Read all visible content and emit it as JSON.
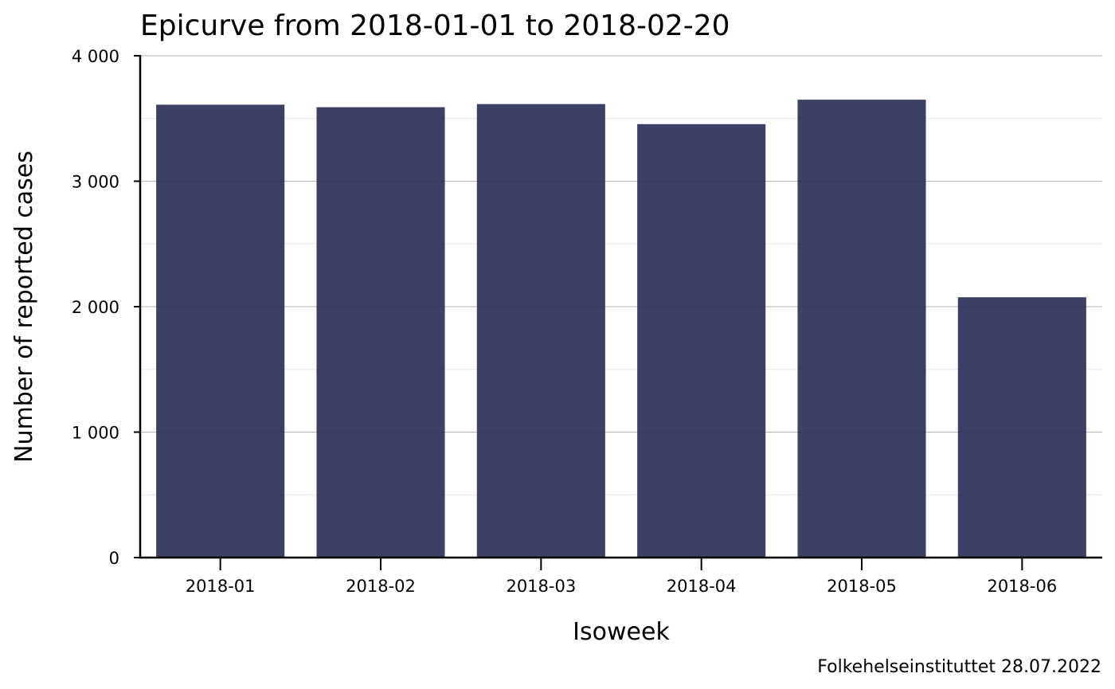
{
  "chart_data": {
    "type": "bar",
    "title": "Epicurve from 2018-01-01 to 2018-02-20",
    "xlabel": "Isoweek",
    "ylabel": "Number of reported cases",
    "categories": [
      "2018-01",
      "2018-02",
      "2018-03",
      "2018-04",
      "2018-05",
      "2018-06"
    ],
    "values": [
      3610,
      3590,
      3615,
      3455,
      3650,
      2075
    ],
    "ylim": [
      0,
      4000
    ],
    "yticks": [
      0,
      1000,
      2000,
      3000,
      4000
    ],
    "ytick_labels": [
      "0",
      "1 000",
      "2 000",
      "3 000",
      "4 000"
    ],
    "grid": {
      "major": true,
      "minor": true
    },
    "bar_color": "#2b3058",
    "caption": "Folkehelseinstituttet 28.07.2022"
  }
}
